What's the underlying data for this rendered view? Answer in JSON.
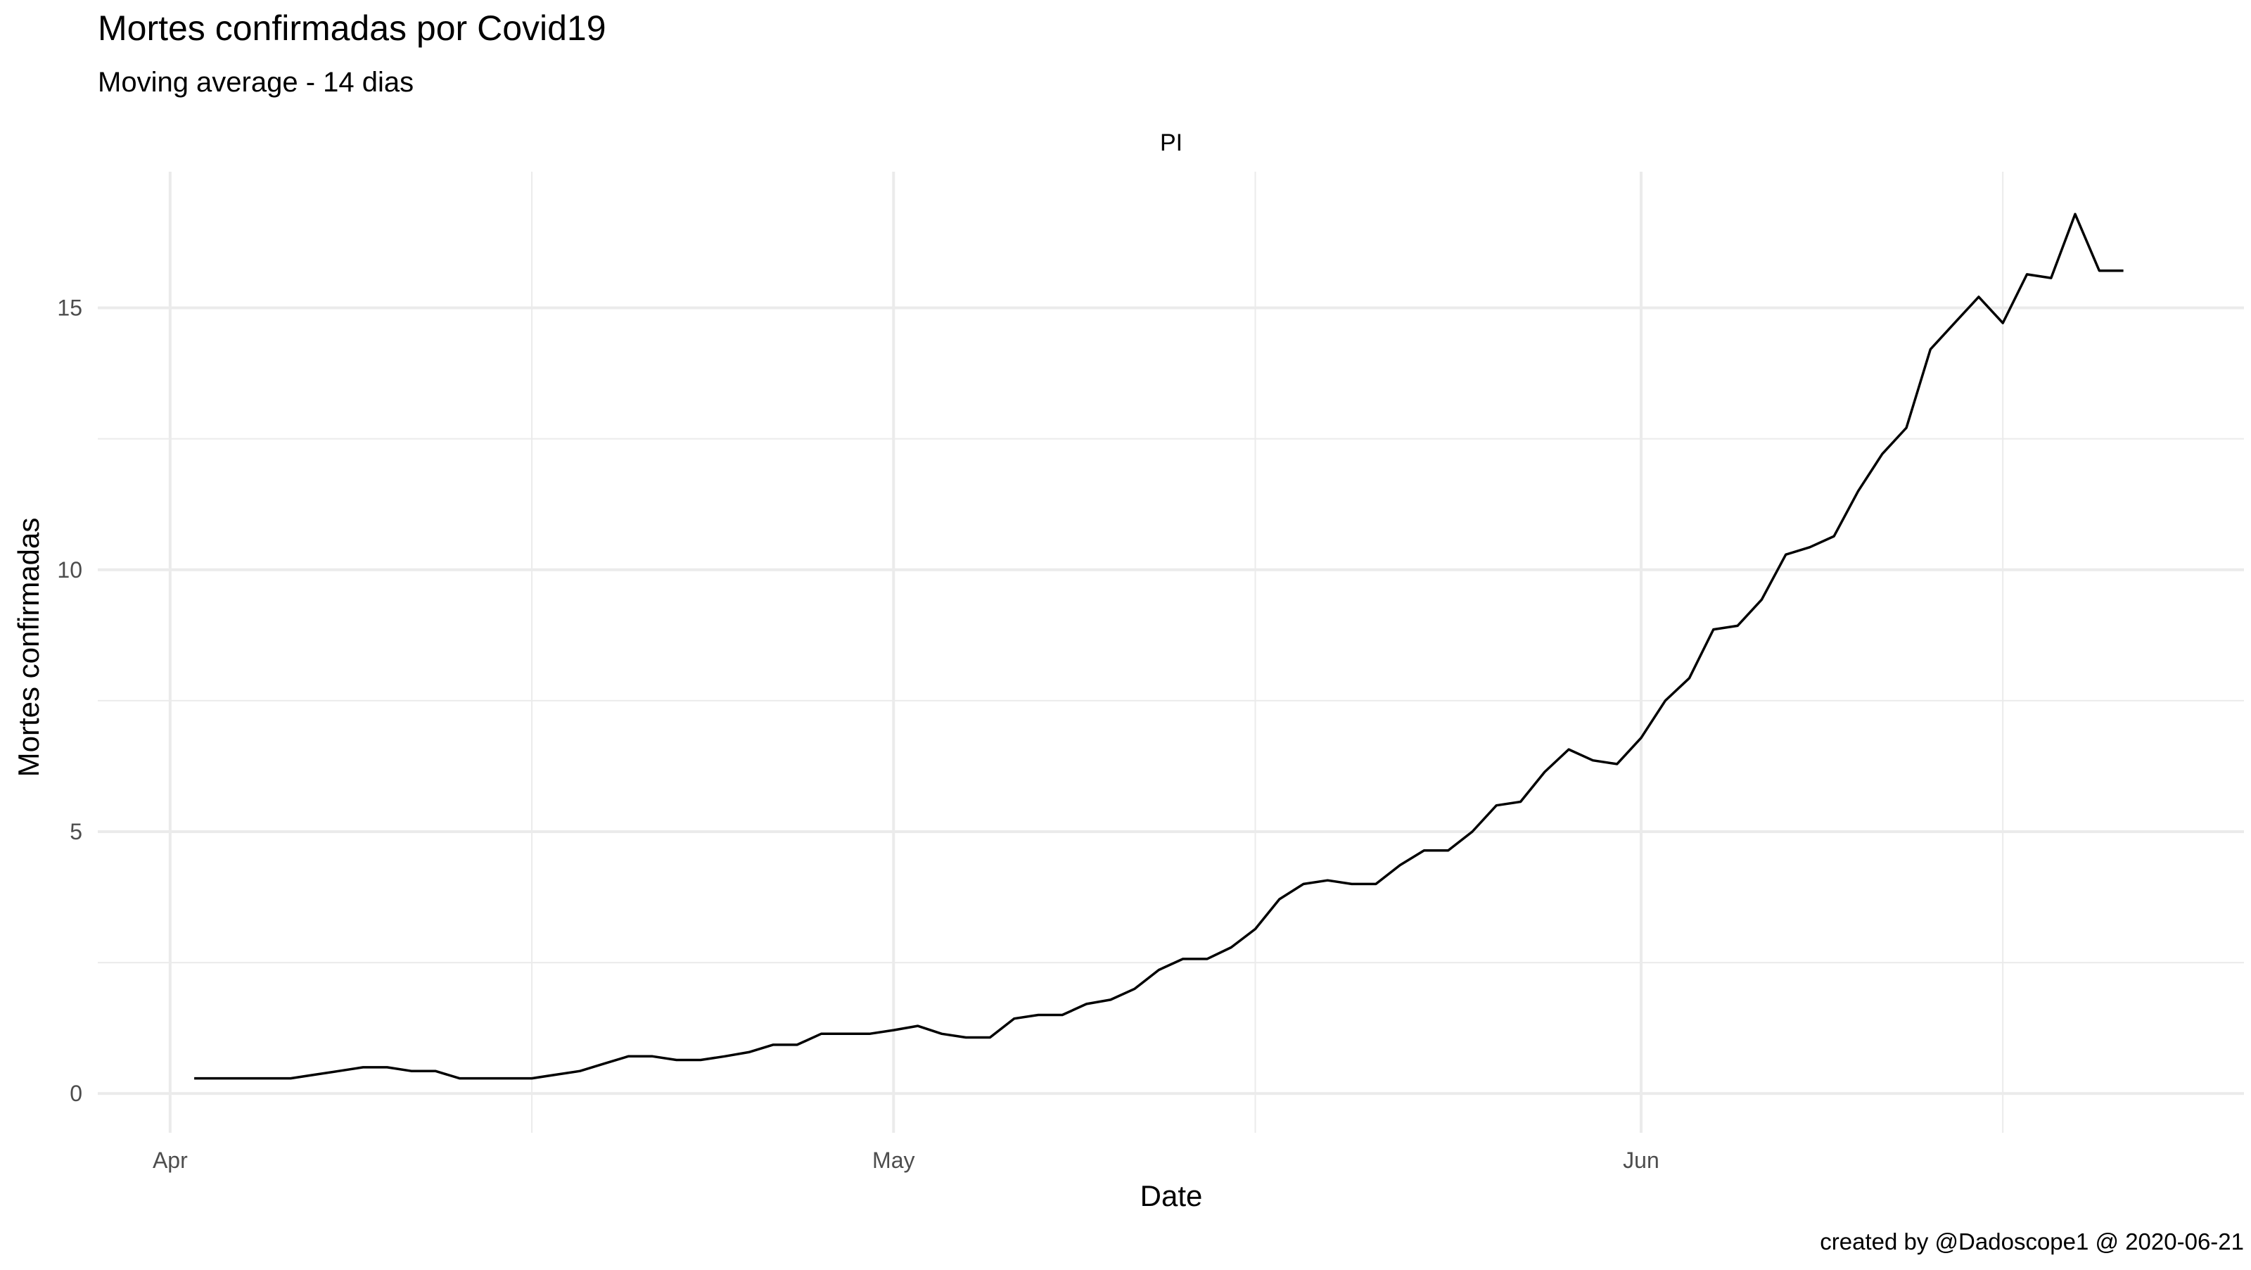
{
  "chart_data": {
    "type": "line",
    "title": "Mortes confirmadas por Covid19",
    "subtitle": "Moving average - 14 dias",
    "facet_label": "PI",
    "xlabel": "Date",
    "ylabel": "Mortes confirmadas",
    "caption": "created by @Dadoscope1 @ 2020-06-21",
    "x_range": [
      "2020-03-29",
      "2020-06-26"
    ],
    "ylim": [
      -0.75,
      17.6
    ],
    "x_ticks": [
      {
        "date": "2020-04-01",
        "label": "Apr"
      },
      {
        "date": "2020-05-01",
        "label": "May"
      },
      {
        "date": "2020-06-01",
        "label": "Jun"
      }
    ],
    "x_minor_ticks": [
      "2020-04-16",
      "2020-05-16",
      "2020-06-16"
    ],
    "y_ticks": [
      0,
      5,
      10,
      15
    ],
    "y_minor_ticks": [
      2.5,
      7.5,
      12.5
    ],
    "grid": true,
    "line_color": "#000000",
    "series": [
      {
        "x": [
          "2020-04-02",
          "2020-04-03",
          "2020-04-04",
          "2020-04-05",
          "2020-04-06",
          "2020-04-07",
          "2020-04-08",
          "2020-04-09",
          "2020-04-10",
          "2020-04-11",
          "2020-04-12",
          "2020-04-13",
          "2020-04-14",
          "2020-04-15",
          "2020-04-16",
          "2020-04-17",
          "2020-04-18",
          "2020-04-19",
          "2020-04-20",
          "2020-04-21",
          "2020-04-22",
          "2020-04-23",
          "2020-04-24",
          "2020-04-25",
          "2020-04-26",
          "2020-04-27",
          "2020-04-28",
          "2020-04-29",
          "2020-04-30",
          "2020-05-01",
          "2020-05-02",
          "2020-05-03",
          "2020-05-04",
          "2020-05-05",
          "2020-05-06",
          "2020-05-07",
          "2020-05-08",
          "2020-05-09",
          "2020-05-10",
          "2020-05-11",
          "2020-05-12",
          "2020-05-13",
          "2020-05-14",
          "2020-05-15",
          "2020-05-16",
          "2020-05-17",
          "2020-05-18",
          "2020-05-19",
          "2020-05-20",
          "2020-05-21",
          "2020-05-22",
          "2020-05-23",
          "2020-05-24",
          "2020-05-25",
          "2020-05-26",
          "2020-05-27",
          "2020-05-28",
          "2020-05-29",
          "2020-05-30",
          "2020-05-31",
          "2020-06-01",
          "2020-06-02",
          "2020-06-03",
          "2020-06-04",
          "2020-06-05",
          "2020-06-06",
          "2020-06-07",
          "2020-06-08",
          "2020-06-09",
          "2020-06-10",
          "2020-06-11",
          "2020-06-12",
          "2020-06-13",
          "2020-06-14",
          "2020-06-15",
          "2020-06-16",
          "2020-06-17",
          "2020-06-18",
          "2020-06-19",
          "2020-06-20",
          "2020-06-21"
        ],
        "values": [
          0.29,
          0.29,
          0.29,
          0.29,
          0.29,
          0.36,
          0.43,
          0.5,
          0.5,
          0.43,
          0.43,
          0.29,
          0.29,
          0.29,
          0.29,
          0.36,
          0.43,
          0.57,
          0.71,
          0.71,
          0.64,
          0.64,
          0.71,
          0.79,
          0.93,
          0.93,
          1.14,
          1.14,
          1.14,
          1.21,
          1.29,
          1.14,
          1.07,
          1.07,
          1.43,
          1.5,
          1.5,
          1.71,
          1.79,
          2.0,
          2.36,
          2.57,
          2.57,
          2.79,
          3.14,
          3.71,
          4.0,
          4.07,
          4.0,
          4.0,
          4.36,
          4.64,
          4.64,
          5.0,
          5.5,
          5.57,
          6.14,
          6.57,
          6.36,
          6.29,
          6.79,
          7.5,
          7.93,
          8.86,
          8.93,
          9.43,
          10.29,
          10.43,
          10.64,
          11.5,
          12.21,
          12.71,
          14.21,
          14.71,
          15.21,
          14.71,
          15.64,
          15.57,
          16.79,
          15.71,
          15.71
        ]
      }
    ]
  }
}
